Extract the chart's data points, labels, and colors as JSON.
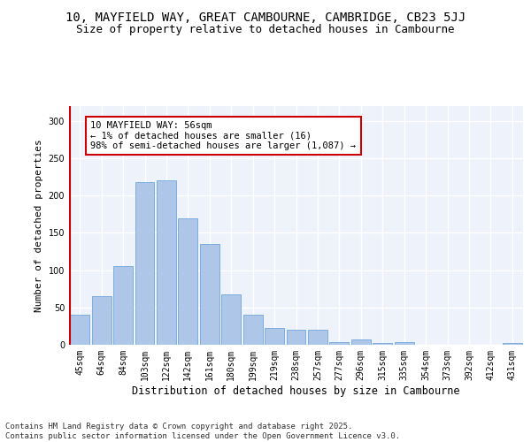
{
  "title1": "10, MAYFIELD WAY, GREAT CAMBOURNE, CAMBRIDGE, CB23 5JJ",
  "title2": "Size of property relative to detached houses in Cambourne",
  "xlabel": "Distribution of detached houses by size in Cambourne",
  "ylabel": "Number of detached properties",
  "categories": [
    "45sqm",
    "64sqm",
    "84sqm",
    "103sqm",
    "122sqm",
    "142sqm",
    "161sqm",
    "180sqm",
    "199sqm",
    "219sqm",
    "238sqm",
    "257sqm",
    "277sqm",
    "296sqm",
    "315sqm",
    "335sqm",
    "354sqm",
    "373sqm",
    "392sqm",
    "412sqm",
    "431sqm"
  ],
  "values": [
    40,
    65,
    105,
    218,
    220,
    170,
    135,
    68,
    40,
    22,
    20,
    20,
    3,
    7,
    2,
    3,
    0,
    0,
    0,
    0,
    2
  ],
  "bar_color": "#aec6e8",
  "bar_edge_color": "#5b9bd5",
  "highlight_color": "#cc0000",
  "annotation_text": "10 MAYFIELD WAY: 56sqm\n← 1% of detached houses are smaller (16)\n98% of semi-detached houses are larger (1,087) →",
  "annotation_box_color": "#ffffff",
  "annotation_box_edge": "#cc0000",
  "ylim": [
    0,
    320
  ],
  "yticks": [
    0,
    50,
    100,
    150,
    200,
    250,
    300
  ],
  "background_color": "#eef2fb",
  "grid_color": "#ffffff",
  "footer_text": "Contains HM Land Registry data © Crown copyright and database right 2025.\nContains public sector information licensed under the Open Government Licence v3.0.",
  "title1_fontsize": 10,
  "title2_fontsize": 9,
  "xlabel_fontsize": 8.5,
  "ylabel_fontsize": 8,
  "tick_fontsize": 7,
  "annotation_fontsize": 7.5,
  "footer_fontsize": 6.5
}
